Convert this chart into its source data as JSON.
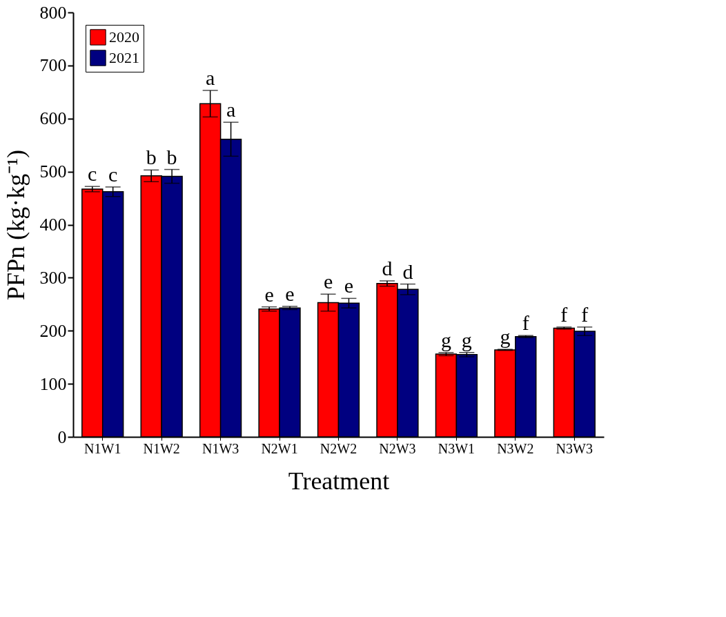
{
  "chart_data": {
    "type": "bar",
    "xlabel": "Treatment",
    "ylabel": "PFPn (kg·kg⁻¹)",
    "categories": [
      "N1W1",
      "N1W2",
      "N1W3",
      "N2W1",
      "N2W2",
      "N2W3",
      "N3W1",
      "N3W2",
      "N3W3"
    ],
    "series": [
      {
        "name": "2020",
        "color": "#ff0000",
        "values": [
          467,
          492,
          628,
          241,
          253,
          289,
          156,
          164,
          205
        ],
        "errors": [
          5,
          11,
          25,
          4,
          16,
          5,
          3,
          1,
          2
        ],
        "value_labels": [
          "c",
          "b",
          "a",
          "e",
          "e",
          "d",
          "g",
          "g",
          "f"
        ]
      },
      {
        "name": "2021",
        "color": "#000080",
        "values": [
          462,
          491,
          561,
          243,
          252,
          278,
          155,
          189,
          199
        ],
        "errors": [
          9,
          13,
          32,
          3,
          9,
          10,
          4,
          2,
          8
        ],
        "value_labels": [
          "c",
          "b",
          "a",
          "e",
          "e",
          "d",
          "g",
          "f",
          "f"
        ]
      }
    ],
    "ylim": [
      0,
      800
    ],
    "yticks": [
      0,
      100,
      200,
      300,
      400,
      500,
      600,
      700,
      800
    ],
    "grid": false,
    "legend": "top left"
  }
}
